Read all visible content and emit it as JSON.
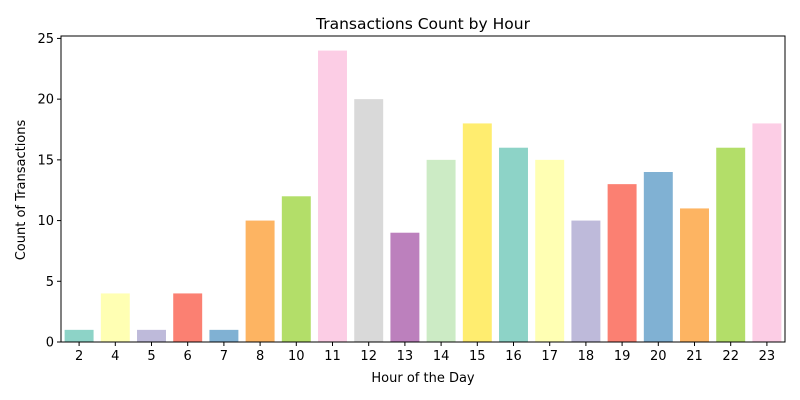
{
  "chart_data": {
    "type": "bar",
    "title": "Transactions Count by Hour",
    "xlabel": "Hour of the Day",
    "ylabel": "Count of Transactions",
    "categories": [
      "2",
      "4",
      "5",
      "6",
      "7",
      "8",
      "10",
      "11",
      "12",
      "13",
      "14",
      "15",
      "16",
      "17",
      "18",
      "19",
      "20",
      "21",
      "22",
      "23"
    ],
    "values": [
      1,
      4,
      1,
      4,
      1,
      10,
      12,
      24,
      20,
      9,
      15,
      18,
      16,
      15,
      10,
      13,
      14,
      11,
      16,
      18
    ],
    "colors": [
      "#8dd3c7",
      "#ffffb3",
      "#bebada",
      "#fb8072",
      "#80b1d3",
      "#fdb462",
      "#b3de69",
      "#fccde5",
      "#d9d9d9",
      "#bc80bd",
      "#ccebc5",
      "#ffed6f",
      "#8dd3c7",
      "#ffffb3",
      "#bebada",
      "#fb8072",
      "#80b1d3",
      "#fdb462",
      "#b3de69",
      "#fccde5"
    ],
    "ylim": [
      0,
      25.2
    ],
    "yticks": [
      0,
      5,
      10,
      15,
      20,
      25
    ],
    "grid": false,
    "legend": "none"
  }
}
